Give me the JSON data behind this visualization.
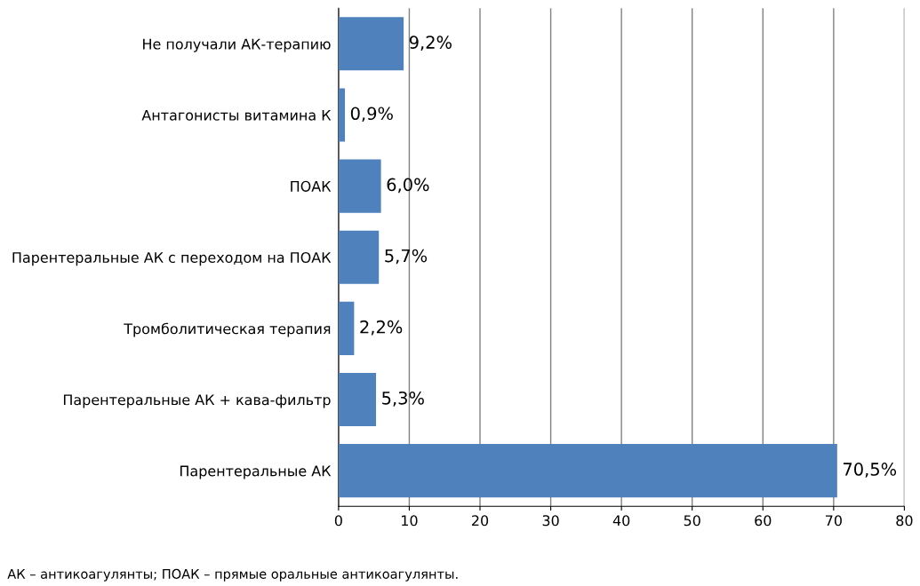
{
  "chart_data": {
    "type": "bar",
    "orientation": "horizontal",
    "categories": [
      "Не получали АК-терапию",
      "Антагонисты витамина К",
      "ПОАК",
      "Парентеральные АК с переходом на ПОАК",
      "Тромболитическая терапия",
      "Парентеральные АК + кава-фильтр",
      "Парентеральные АК"
    ],
    "values": [
      9.2,
      0.9,
      6.0,
      5.7,
      2.2,
      5.3,
      70.5
    ],
    "value_labels": [
      "9,2%",
      "0,9%",
      "6,0%",
      "5,7%",
      "2,2%",
      "5,3%",
      "70,5%"
    ],
    "color": "#4f81bd",
    "xlim": [
      0,
      80
    ],
    "xticks": [
      0,
      10,
      20,
      30,
      40,
      50,
      60,
      70,
      80
    ],
    "grid": "x",
    "annotations": [
      "АК – антикоагулянты; ПОАК – прямые оральные антикоагулянты."
    ]
  }
}
